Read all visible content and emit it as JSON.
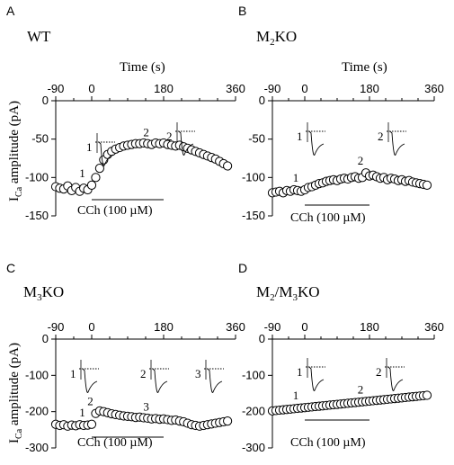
{
  "y_axis_label": {
    "main": "I",
    "sub": "Ca",
    "rest": " amplitude (pA)"
  },
  "chart_data": [
    {
      "type": "scatter",
      "panel": "A",
      "genotype": {
        "base": "WT",
        "sub": "",
        "rest": ""
      },
      "xlabel": "Time (s)",
      "xticks": [
        -90,
        0,
        180,
        360
      ],
      "xlim": [
        -90,
        360
      ],
      "yticks": [
        0,
        -50,
        -100,
        -150
      ],
      "ylim": [
        -150,
        0
      ],
      "drug_label": "CCh (100 µM)",
      "drug_bar": [
        0,
        180
      ],
      "x": [
        -90,
        -80,
        -70,
        -60,
        -50,
        -40,
        -30,
        -20,
        -10,
        0,
        10,
        20,
        30,
        40,
        50,
        60,
        70,
        80,
        90,
        100,
        110,
        120,
        130,
        140,
        150,
        160,
        170,
        180,
        190,
        200,
        210,
        220,
        230,
        240,
        250,
        260,
        270,
        280,
        290,
        300,
        310,
        320,
        330,
        340
      ],
      "values": [
        -112,
        -114,
        -115,
        -111,
        -117,
        -113,
        -118,
        -114,
        -116,
        -110,
        -100,
        -88,
        -77,
        -70,
        -66,
        -63,
        -61,
        -59,
        -58,
        -57,
        -56,
        -56,
        -55,
        -56,
        -57,
        -55,
        -56,
        -55,
        -57,
        -58,
        -59,
        -58,
        -60,
        -62,
        -64,
        -66,
        -68,
        -70,
        -72,
        -74,
        -76,
        -79,
        -82,
        -85
      ],
      "point_labels": [
        {
          "text": "1",
          "x": -10,
          "y": -110
        },
        {
          "text": "2",
          "x": 150,
          "y": -57
        }
      ],
      "inset_labels": [
        "1",
        "2"
      ]
    },
    {
      "type": "scatter",
      "panel": "B",
      "genotype": {
        "base": "M",
        "sub": "2",
        "rest": "KO"
      },
      "xlabel": "Time (s)",
      "xticks": [
        -90,
        0,
        180,
        360
      ],
      "xlim": [
        -90,
        360
      ],
      "yticks": [
        0,
        -50,
        -100,
        -150
      ],
      "ylim": [
        -150,
        0
      ],
      "drug_label": "CCh (100 µM)",
      "drug_bar": [
        0,
        180
      ],
      "x": [
        -90,
        -80,
        -70,
        -60,
        -50,
        -40,
        -30,
        -20,
        -10,
        0,
        10,
        20,
        30,
        40,
        50,
        60,
        70,
        80,
        90,
        100,
        110,
        120,
        130,
        140,
        150,
        160,
        170,
        180,
        190,
        200,
        210,
        220,
        230,
        240,
        250,
        260,
        270,
        280,
        290,
        300,
        310,
        320,
        330,
        340
      ],
      "values": [
        -120,
        -119,
        -118,
        -120,
        -117,
        -118,
        -116,
        -117,
        -118,
        -116,
        -113,
        -112,
        -110,
        -108,
        -107,
        -105,
        -104,
        -103,
        -104,
        -102,
        -101,
        -102,
        -100,
        -99,
        -101,
        -100,
        -94,
        -98,
        -97,
        -99,
        -101,
        -100,
        -103,
        -101,
        -102,
        -104,
        -103,
        -105,
        -104,
        -106,
        -107,
        -108,
        -109,
        -110
      ],
      "point_labels": [
        {
          "text": "1",
          "x": -10,
          "y": -116
        },
        {
          "text": "2",
          "x": 170,
          "y": -94
        }
      ],
      "inset_labels": [
        "1",
        "2"
      ]
    },
    {
      "type": "scatter",
      "panel": "C",
      "genotype": {
        "base": "M",
        "sub": "3",
        "rest": "KO"
      },
      "xlabel": "",
      "xticks": [
        -90,
        0,
        180,
        360
      ],
      "xlim": [
        -90,
        360
      ],
      "yticks": [
        0,
        -100,
        -200,
        -300
      ],
      "ylim": [
        -300,
        0
      ],
      "drug_label": "CCh (100 µM)",
      "drug_bar": [
        0,
        180
      ],
      "x": [
        -90,
        -80,
        -70,
        -60,
        -50,
        -40,
        -30,
        -20,
        -10,
        0,
        10,
        20,
        30,
        40,
        50,
        60,
        70,
        80,
        90,
        100,
        110,
        120,
        130,
        140,
        150,
        160,
        170,
        180,
        190,
        200,
        210,
        220,
        230,
        240,
        250,
        260,
        270,
        280,
        290,
        300,
        310,
        320,
        330,
        340
      ],
      "values": [
        -235,
        -238,
        -236,
        -240,
        -237,
        -239,
        -236,
        -238,
        -237,
        -235,
        -205,
        -198,
        -200,
        -203,
        -206,
        -208,
        -210,
        -212,
        -213,
        -214,
        -216,
        -215,
        -217,
        -218,
        -220,
        -219,
        -221,
        -220,
        -222,
        -224,
        -223,
        -226,
        -228,
        -232,
        -236,
        -238,
        -240,
        -238,
        -236,
        -234,
        -232,
        -230,
        -228,
        -226
      ],
      "point_labels": [
        {
          "text": "1",
          "x": -10,
          "y": -235
        },
        {
          "text": "2",
          "x": 10,
          "y": -205
        },
        {
          "text": "3",
          "x": 150,
          "y": -220
        }
      ],
      "inset_labels": [
        "1",
        "2",
        "3"
      ]
    },
    {
      "type": "scatter",
      "panel": "D",
      "genotype": {
        "base": "M",
        "sub": "2",
        "rest": "/M",
        "sub2": "3",
        "rest2": "KO"
      },
      "xlabel": "",
      "xticks": [
        -90,
        0,
        180,
        360
      ],
      "xlim": [
        -90,
        360
      ],
      "yticks": [
        0,
        -100,
        -200,
        -300
      ],
      "ylim": [
        -300,
        0
      ],
      "drug_label": "CCh (100 µM)",
      "drug_bar": [
        0,
        180
      ],
      "x": [
        -90,
        -80,
        -70,
        -60,
        -50,
        -40,
        -30,
        -20,
        -10,
        0,
        10,
        20,
        30,
        40,
        50,
        60,
        70,
        80,
        90,
        100,
        110,
        120,
        130,
        140,
        150,
        160,
        170,
        180,
        190,
        200,
        210,
        220,
        230,
        240,
        250,
        260,
        270,
        280,
        290,
        300,
        310,
        320,
        330,
        340
      ],
      "values": [
        -198,
        -197,
        -196,
        -195,
        -194,
        -193,
        -192,
        -191,
        -190,
        -189,
        -188,
        -187,
        -186,
        -185,
        -184,
        -183,
        -182,
        -181,
        -180,
        -179,
        -178,
        -177,
        -176,
        -175,
        -174,
        -173,
        -172,
        -171,
        -170,
        -169,
        -168,
        -167,
        -166,
        -165,
        -164,
        -163,
        -162,
        -161,
        -160,
        -159,
        -158,
        -157,
        -156,
        -155
      ],
      "point_labels": [
        {
          "text": "1",
          "x": -10,
          "y": -189
        },
        {
          "text": "2",
          "x": 170,
          "y": -172
        }
      ],
      "inset_labels": [
        "1",
        "2"
      ]
    }
  ]
}
